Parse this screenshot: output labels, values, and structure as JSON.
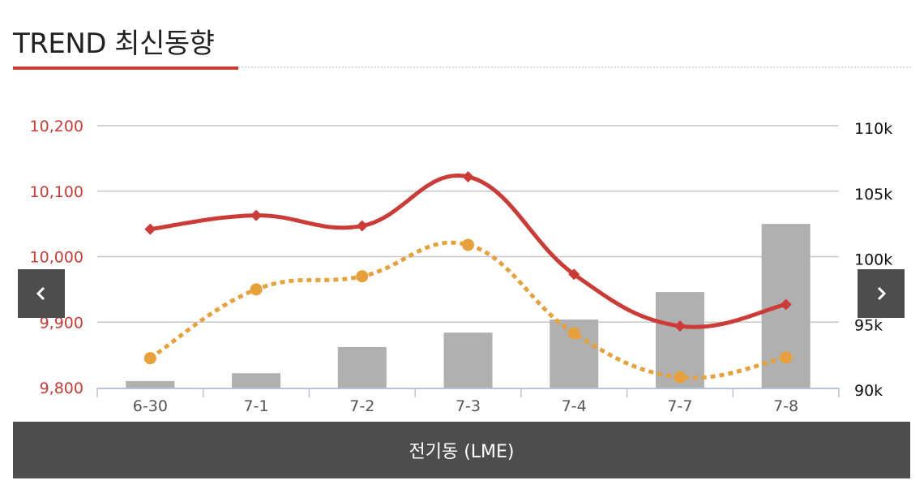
{
  "header": {
    "title": "TREND 최신동향"
  },
  "nav": {
    "prev_icon": "chevron-left-icon",
    "next_icon": "chevron-right-icon"
  },
  "footer": {
    "label": "전기동 (LME)"
  },
  "colors": {
    "accent": "#cc3b36",
    "dotted": "#e8a13a",
    "bar": "#b0b0b0",
    "dark": "#4d4d4d"
  },
  "chart_data": {
    "type": "bar",
    "categories": [
      "6-30",
      "7-1",
      "7-2",
      "7-3",
      "7-4",
      "7-7",
      "7-8"
    ],
    "left_axis": {
      "ylim": [
        9800,
        10200
      ],
      "ticks": [
        "9,800",
        "9,900",
        "10,000",
        "10,100",
        "10,200"
      ],
      "tick_values": [
        9800,
        9900,
        10000,
        10100,
        10200
      ]
    },
    "right_axis": {
      "ylim": [
        90,
        110
      ],
      "ticks": [
        "90k",
        "95k",
        "100k",
        "105k",
        "110k"
      ],
      "tick_values": [
        90,
        95,
        100,
        105,
        110
      ]
    },
    "grid": true,
    "series": [
      {
        "kind": "bar",
        "axis": "right",
        "values": [
          90.5,
          91.1,
          93.1,
          94.2,
          95.2,
          97.3,
          102.5
        ]
      },
      {
        "kind": "line",
        "axis": "left",
        "marker": "diamond",
        "values": [
          10042,
          10063,
          10047,
          10122,
          9973,
          9894,
          9927
        ]
      },
      {
        "kind": "line",
        "axis": "left",
        "style": "dotted",
        "marker": "circle",
        "values": [
          9845,
          9950,
          9970,
          10018,
          9883,
          9816,
          9846
        ]
      }
    ]
  }
}
